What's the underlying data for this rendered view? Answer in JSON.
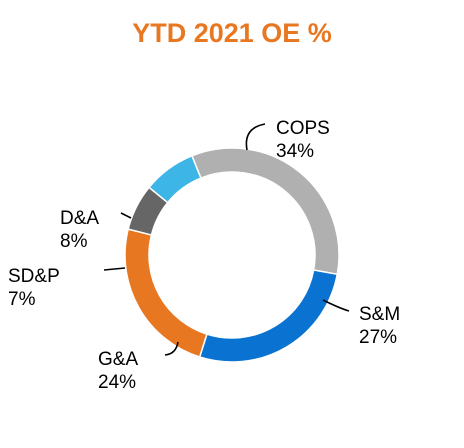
{
  "chart_data": {
    "type": "pie",
    "title": "YTD 2021 OE %",
    "title_color": "#E87722",
    "slices": [
      {
        "name": "COPS",
        "value": 34,
        "label": "34%",
        "color": "#B0B0B0"
      },
      {
        "name": "S&M",
        "value": 27,
        "label": "27%",
        "color": "#0A73D2"
      },
      {
        "name": "G&A",
        "value": 24,
        "label": "24%",
        "color": "#E87722"
      },
      {
        "name": "SD&P",
        "value": 7,
        "label": "7%",
        "color": "#666666"
      },
      {
        "name": "D&A",
        "value": 8,
        "label": "8%",
        "color": "#3DB5E6"
      }
    ],
    "style": "donut",
    "legend": "none"
  }
}
